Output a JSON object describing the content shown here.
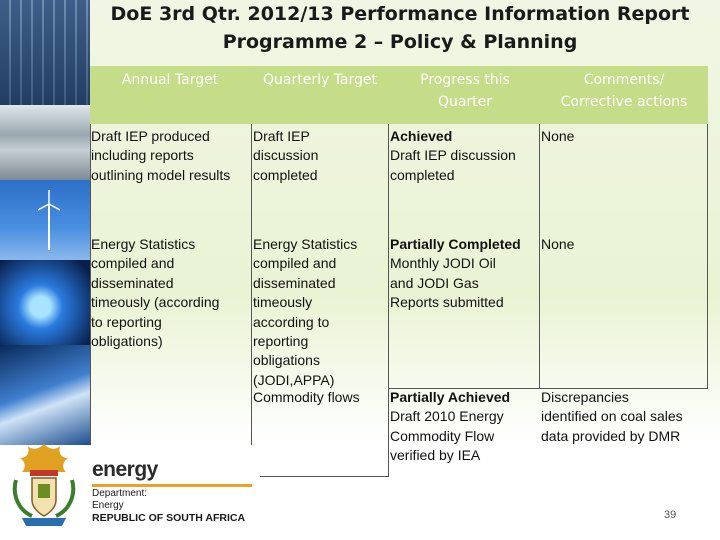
{
  "slide": {
    "title_line1": "DoE 3rd Qtr. 2012/13 Performance Information Report",
    "title_line2": "Programme 2 – Policy & Planning",
    "page_number": "39"
  },
  "table": {
    "headers": [
      {
        "line1": "Annual Target",
        "line2": ""
      },
      {
        "line1": "Quarterly Target",
        "line2": ""
      },
      {
        "line1": "Progress this",
        "line2": "Quarter"
      },
      {
        "line1": "Comments/",
        "line2": "Corrective actions"
      }
    ],
    "rows": [
      {
        "annual": [
          "Draft IEP produced",
          "including reports",
          "outlining model results"
        ],
        "quarterly": [
          "Draft IEP",
          "discussion",
          "completed"
        ],
        "progress": [
          "Achieved",
          "Draft IEP discussion",
          "completed"
        ],
        "comments": [
          "None"
        ]
      },
      {
        "annual": [
          "Energy Statistics",
          "compiled and",
          "disseminated",
          "timeously (according",
          "to reporting",
          "obligations)"
        ],
        "quarterly": [
          "Energy Statistics",
          "compiled and",
          "disseminated",
          "timeously",
          "according to",
          "reporting",
          "obligations",
          "(JODI,APPA)"
        ],
        "progress": [
          "Partially Completed",
          "Monthly JODI Oil",
          "and  JODI Gas",
          "Reports submitted"
        ],
        "comments": [
          "None"
        ]
      },
      {
        "annual": [],
        "quarterly": [
          "Commodity flows"
        ],
        "progress": [
          "Partially Achieved",
          "Draft 2010 Energy",
          "Commodity Flow",
          "verified by IEA"
        ],
        "comments": [
          "Discrepancies",
          "identified on coal sales",
          "data provided by DMR"
        ]
      }
    ]
  },
  "logo": {
    "wordmark": "energy",
    "dept_line1": "Department:",
    "dept_line2": "Energy",
    "dept_line3": "REPUBLIC OF SOUTH AFRICA"
  },
  "colors": {
    "header_fill": "#c5dd88",
    "background": "#eaf3d4",
    "accent_orange": "#f0a020"
  }
}
